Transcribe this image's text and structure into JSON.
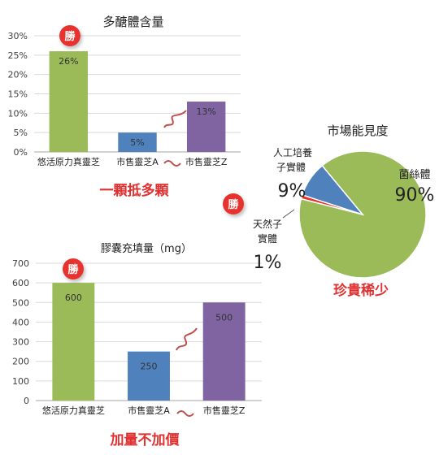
{
  "badge_text": "勝",
  "colors": {
    "green": "#9bbb59",
    "blue": "#4f81bd",
    "purple": "#8064a2",
    "red_text": "#e03030",
    "badge_red": "#e8312e",
    "axis_text": "#404040",
    "grid": "#d9d9d9"
  },
  "chart_data": [
    {
      "type": "bar",
      "title": "多醣體含量",
      "categories": [
        "悠活原力真靈芝",
        "市售靈芝A",
        "市售靈芝Z"
      ],
      "values": [
        26,
        5,
        13
      ],
      "data_labels": [
        "26%",
        "5%",
        "13%"
      ],
      "yticks": [
        "0%",
        "5%",
        "10%",
        "15%",
        "20%",
        "25%",
        "30%"
      ],
      "ylim": [
        0,
        30
      ],
      "grid": true,
      "caption": "一顆抵多顆"
    },
    {
      "type": "bar",
      "title": "膠囊充填量（mg）",
      "categories": [
        "悠活原力真靈芝",
        "市售靈芝A",
        "市售靈芝Z"
      ],
      "values": [
        600,
        250,
        500
      ],
      "data_labels": [
        "600",
        "250",
        "500"
      ],
      "yticks": [
        "0",
        "100",
        "200",
        "300",
        "400",
        "500",
        "600",
        "700"
      ],
      "ylim": [
        0,
        700
      ],
      "grid": true,
      "caption": "加量不加價"
    },
    {
      "type": "pie",
      "title": "市場能見度",
      "slices": [
        {
          "name": "菌絲體",
          "value": 90,
          "label": "90%"
        },
        {
          "name": "天然子實體",
          "value": 1,
          "label": "1%"
        },
        {
          "name": "人工培養子實體",
          "value": 9,
          "label": "9%"
        }
      ],
      "slice_labels": [
        {
          "lines": [
            "菌絲體"
          ],
          "pct": "90%"
        },
        {
          "lines": [
            "人工培養",
            "子實體"
          ],
          "pct": "9%"
        },
        {
          "lines": [
            "天然子",
            "實體"
          ],
          "pct": "1%"
        }
      ],
      "caption": "珍貴稀少"
    }
  ]
}
